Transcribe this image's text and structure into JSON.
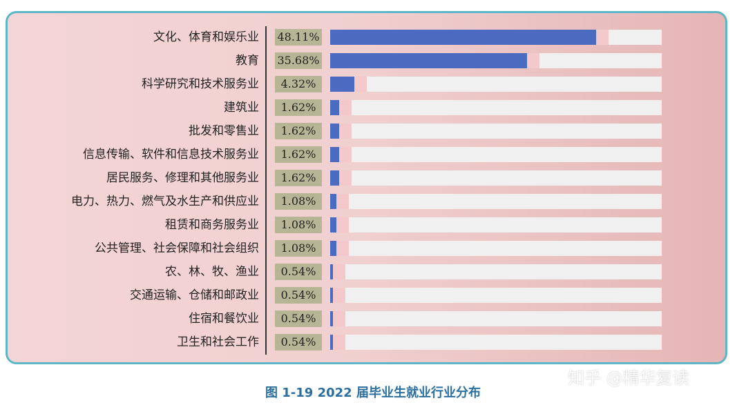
{
  "chart_data": {
    "type": "bar",
    "categories": [
      "文化、体育和娱乐业",
      "教育",
      "科学研究和技术服务业",
      "建筑业",
      "批发和零售业",
      "信息传输、软件和信息技术服务业",
      "居民服务、修理和其他服务业",
      "电力、热力、燃气及水生产和供应业",
      "租赁和商务服务业",
      "公共管理、社会保障和社会组织",
      "农、林、牧、渔业",
      "交通运输、仓储和邮政业",
      "住宿和餐饮业",
      "卫生和社会工作"
    ],
    "values": [
      48.11,
      35.68,
      4.32,
      1.62,
      1.62,
      1.62,
      1.62,
      1.08,
      1.08,
      1.08,
      0.54,
      0.54,
      0.54,
      0.54
    ],
    "value_labels": [
      "48.11%",
      "35.68%",
      "4.32%",
      "1.62%",
      "1.62%",
      "1.62%",
      "1.62%",
      "1.08%",
      "1.08%",
      "1.08%",
      "0.54%",
      "0.54%",
      "0.54%",
      "0.54%"
    ],
    "title": "图 1-19    2022 届毕业生就业行业分布",
    "xlim": [
      0,
      60
    ],
    "orientation": "horizontal",
    "grid": false,
    "colors": {
      "bar": "#4a6bbf",
      "track": "#f0f0f0",
      "label_box": "#b8b596",
      "panel_border": "#5bb7c6"
    }
  },
  "watermark": "知乎 @精华复读"
}
